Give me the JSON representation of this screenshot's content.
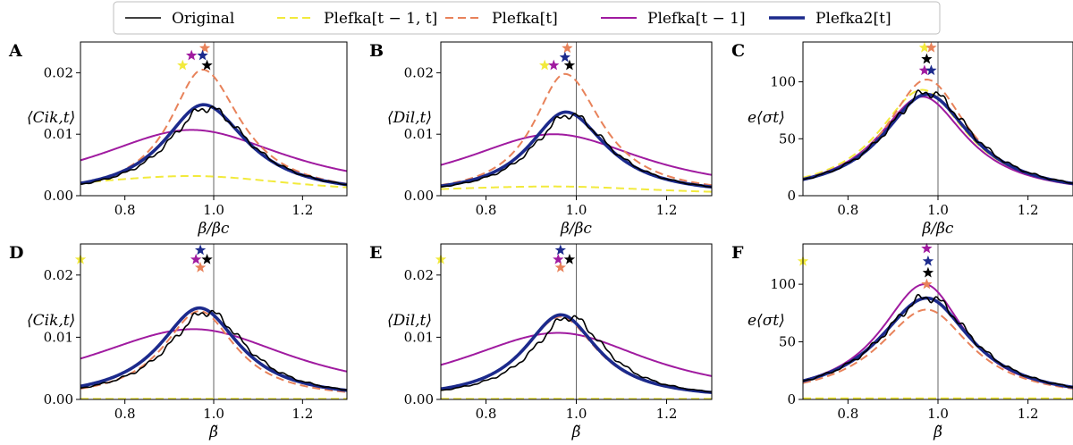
{
  "legend": [
    {
      "label": "Original",
      "color": "#000000",
      "dash": "solid",
      "width": 1.6
    },
    {
      "label": "Plefka[t − 1, t]",
      "color": "#f2ea3c",
      "dash": "dashed",
      "width": 2
    },
    {
      "label": "Plefka[t]",
      "color": "#e8825a",
      "dash": "dashed",
      "width": 2
    },
    {
      "label": "Plefka[t − 1]",
      "color": "#a01ba0",
      "dash": "solid",
      "width": 2
    },
    {
      "label": "Plefka2[t]",
      "color": "#1c2a8c",
      "dash": "solid",
      "width": 3.6
    }
  ],
  "chart_data": [
    {
      "panel": "A",
      "type": "line",
      "xlabel": "β/βc",
      "ylabel": "⟨Cik,t⟩",
      "xlim": [
        0.7,
        1.3
      ],
      "ylim": [
        0,
        0.025
      ],
      "xticks": [
        0.8,
        1.0,
        1.2
      ],
      "xtick_labels": [
        "0.8",
        "1.0",
        "1.2"
      ],
      "yticks": [
        0,
        0.01,
        0.02
      ],
      "ytick_labels": [
        "0.00",
        "0.01",
        "0.02"
      ],
      "vline": 1.0,
      "series": [
        {
          "name": "Plefka[t − 1, t]",
          "peak": 0.0032,
          "x0": 0.95,
          "left_width": 0.35,
          "right_width": 0.3,
          "base": 0
        },
        {
          "name": "Plefka[t − 1]",
          "peak": 0.0107,
          "x0": 0.95,
          "left_width": 0.27,
          "right_width": 0.27,
          "base": 0
        },
        {
          "name": "Plefka[t]",
          "peak": 0.0205,
          "x0": 0.975,
          "left_width": 0.09,
          "right_width": 0.105,
          "base": 0
        },
        {
          "name": "Plefka2[t]",
          "peak": 0.0148,
          "x0": 0.977,
          "left_width": 0.11,
          "right_width": 0.12,
          "base": 0
        },
        {
          "name": "Original",
          "peak": 0.0143,
          "x0": 0.985,
          "left_width": 0.11,
          "right_width": 0.12,
          "base": 0,
          "noise": true
        }
      ],
      "stars": [
        {
          "name": "Plefka[t]",
          "x": 0.98,
          "y": 0.024
        },
        {
          "name": "Plefka[t − 1]",
          "x": 0.95,
          "y": 0.0228
        },
        {
          "name": "Plefka2[t]",
          "x": 0.975,
          "y": 0.0228
        },
        {
          "name": "Plefka[t − 1, t]",
          "x": 0.93,
          "y": 0.0212
        },
        {
          "name": "Original",
          "x": 0.985,
          "y": 0.0212
        }
      ]
    },
    {
      "panel": "B",
      "type": "line",
      "xlabel": "β/βc",
      "ylabel": "⟨Dil,t⟩",
      "xlim": [
        0.7,
        1.3
      ],
      "ylim": [
        0,
        0.025
      ],
      "xticks": [
        0.8,
        1.0,
        1.2
      ],
      "xtick_labels": [
        "0.8",
        "1.0",
        "1.2"
      ],
      "yticks": [
        0,
        0.01,
        0.02
      ],
      "ytick_labels": [
        "0.00",
        "0.01",
        "0.02"
      ],
      "vline": 1.0,
      "series": [
        {
          "name": "Plefka[t − 1, t]",
          "peak": 0.0015,
          "x0": 0.95,
          "left_width": 0.4,
          "right_width": 0.3,
          "base": 0
        },
        {
          "name": "Plefka[t − 1]",
          "peak": 0.01,
          "x0": 0.95,
          "left_width": 0.25,
          "right_width": 0.25,
          "base": 0
        },
        {
          "name": "Plefka[t]",
          "peak": 0.0198,
          "x0": 0.975,
          "left_width": 0.085,
          "right_width": 0.1,
          "base": 0
        },
        {
          "name": "Plefka2[t]",
          "peak": 0.0136,
          "x0": 0.977,
          "left_width": 0.1,
          "right_width": 0.11,
          "base": 0
        },
        {
          "name": "Original",
          "peak": 0.0132,
          "x0": 0.985,
          "left_width": 0.1,
          "right_width": 0.11,
          "base": 0,
          "noise": true
        }
      ],
      "stars": [
        {
          "name": "Plefka[t]",
          "x": 0.98,
          "y": 0.024
        },
        {
          "name": "Plefka2[t]",
          "x": 0.975,
          "y": 0.0225
        },
        {
          "name": "Plefka[t − 1, t]",
          "x": 0.93,
          "y": 0.0212
        },
        {
          "name": "Plefka[t − 1]",
          "x": 0.95,
          "y": 0.0212
        },
        {
          "name": "Original",
          "x": 0.985,
          "y": 0.0212
        }
      ]
    },
    {
      "panel": "C",
      "type": "line",
      "xlabel": "β/βc",
      "ylabel": "e⟨σt⟩",
      "xlim": [
        0.7,
        1.3
      ],
      "ylim": [
        0,
        135
      ],
      "xticks": [
        0.8,
        1.0,
        1.2
      ],
      "xtick_labels": [
        "0.8",
        "1.0",
        "1.2"
      ],
      "yticks": [
        0,
        50,
        100
      ],
      "ytick_labels": [
        "0",
        "50",
        "100"
      ],
      "vline": 1.0,
      "series": [
        {
          "name": "Plefka[t − 1, t]",
          "peak": 93,
          "x0": 0.965,
          "left_width": 0.12,
          "right_width": 0.12,
          "base": 0
        },
        {
          "name": "Plefka[t − 1]",
          "peak": 87,
          "x0": 0.965,
          "left_width": 0.12,
          "right_width": 0.12,
          "base": 0
        },
        {
          "name": "Plefka[t]",
          "peak": 102,
          "x0": 0.975,
          "left_width": 0.11,
          "right_width": 0.11,
          "base": 0
        },
        {
          "name": "Plefka2[t]",
          "peak": 89,
          "x0": 0.975,
          "left_width": 0.12,
          "right_width": 0.12,
          "base": 0
        },
        {
          "name": "Original",
          "peak": 91,
          "x0": 0.978,
          "left_width": 0.12,
          "right_width": 0.12,
          "base": 0,
          "noise": true
        }
      ],
      "stars": [
        {
          "name": "Plefka[t − 1, t]",
          "x": 0.97,
          "y": 130
        },
        {
          "name": "Plefka[t]",
          "x": 0.985,
          "y": 130
        },
        {
          "name": "Original",
          "x": 0.975,
          "y": 120
        },
        {
          "name": "Plefka[t − 1]",
          "x": 0.97,
          "y": 110
        },
        {
          "name": "Plefka2[t]",
          "x": 0.985,
          "y": 110
        }
      ]
    },
    {
      "panel": "D",
      "type": "line",
      "xlabel": "β̃",
      "ylabel": "⟨Cik,t⟩",
      "xlim": [
        0.7,
        1.3
      ],
      "ylim": [
        0,
        0.025
      ],
      "xticks": [
        0.8,
        1.0,
        1.2
      ],
      "xtick_labels": [
        "0.8",
        "1.0",
        "1.2"
      ],
      "yticks": [
        0,
        0.01,
        0.02
      ],
      "ytick_labels": [
        "0.00",
        "0.01",
        "0.02"
      ],
      "vline": 1.0,
      "series": [
        {
          "name": "Plefka[t − 1, t]",
          "peak": 0.0001,
          "x0": 0.95,
          "left_width": 1,
          "right_width": 1,
          "base": 0
        },
        {
          "name": "Plefka[t − 1]",
          "peak": 0.0113,
          "x0": 0.955,
          "left_width": 0.3,
          "right_width": 0.28,
          "base": 0
        },
        {
          "name": "Plefka[t]",
          "peak": 0.0142,
          "x0": 0.968,
          "left_width": 0.1,
          "right_width": 0.1,
          "base": 0
        },
        {
          "name": "Plefka2[t]",
          "peak": 0.0147,
          "x0": 0.968,
          "left_width": 0.11,
          "right_width": 0.11,
          "base": 0
        },
        {
          "name": "Original",
          "peak": 0.0141,
          "x0": 0.985,
          "left_width": 0.11,
          "right_width": 0.11,
          "base": 0,
          "noise": true
        }
      ],
      "stars": [
        {
          "name": "Plefka[t − 1, t]",
          "x": 0.7,
          "y": 0.0225
        },
        {
          "name": "Plefka2[t]",
          "x": 0.97,
          "y": 0.024
        },
        {
          "name": "Plefka[t − 1]",
          "x": 0.96,
          "y": 0.0225
        },
        {
          "name": "Original",
          "x": 0.985,
          "y": 0.0225
        },
        {
          "name": "Plefka[t]",
          "x": 0.97,
          "y": 0.0212
        }
      ]
    },
    {
      "panel": "E",
      "type": "line",
      "xlabel": "β̃",
      "ylabel": "⟨Dil,t⟩",
      "xlim": [
        0.7,
        1.3
      ],
      "ylim": [
        0,
        0.025
      ],
      "xticks": [
        0.8,
        1.0,
        1.2
      ],
      "xtick_labels": [
        "0.8",
        "1.0",
        "1.2"
      ],
      "yticks": [
        0,
        0.01,
        0.02
      ],
      "ytick_labels": [
        "0.00",
        "0.01",
        "0.02"
      ],
      "vline": 1.0,
      "series": [
        {
          "name": "Plefka[t − 1, t]",
          "peak": 0.0001,
          "x0": 0.95,
          "left_width": 1,
          "right_width": 1,
          "base": 0
        },
        {
          "name": "Plefka[t − 1]",
          "peak": 0.0107,
          "x0": 0.96,
          "left_width": 0.27,
          "right_width": 0.25,
          "base": 0
        },
        {
          "name": "Plefka[t]",
          "peak": 0.0133,
          "x0": 0.965,
          "left_width": 0.1,
          "right_width": 0.1,
          "base": 0
        },
        {
          "name": "Plefka2[t]",
          "peak": 0.0136,
          "x0": 0.966,
          "left_width": 0.1,
          "right_width": 0.1,
          "base": 0
        },
        {
          "name": "Original",
          "peak": 0.0133,
          "x0": 0.985,
          "left_width": 0.1,
          "right_width": 0.1,
          "base": 0,
          "noise": true
        }
      ],
      "stars": [
        {
          "name": "Plefka[t − 1, t]",
          "x": 0.7,
          "y": 0.0225
        },
        {
          "name": "Plefka2[t]",
          "x": 0.965,
          "y": 0.024
        },
        {
          "name": "Plefka[t − 1]",
          "x": 0.96,
          "y": 0.0225
        },
        {
          "name": "Original",
          "x": 0.985,
          "y": 0.0225
        },
        {
          "name": "Plefka[t]",
          "x": 0.965,
          "y": 0.0212
        }
      ]
    },
    {
      "panel": "F",
      "type": "line",
      "xlabel": "β̃",
      "ylabel": "e⟨σt⟩",
      "xlim": [
        0.7,
        1.3
      ],
      "ylim": [
        0,
        135
      ],
      "xticks": [
        0.8,
        1.0,
        1.2
      ],
      "xtick_labels": [
        "0.8",
        "1.0",
        "1.2"
      ],
      "yticks": [
        0,
        50,
        100
      ],
      "ytick_labels": [
        "0",
        "50",
        "100"
      ],
      "vline": 1.0,
      "series": [
        {
          "name": "Plefka[t − 1, t]",
          "peak": 1,
          "x0": 0.95,
          "left_width": 1,
          "right_width": 1,
          "base": 0
        },
        {
          "name": "Plefka[t]",
          "peak": 78,
          "x0": 0.975,
          "left_width": 0.13,
          "right_width": 0.12,
          "base": 0
        },
        {
          "name": "Plefka[t − 1]",
          "peak": 100,
          "x0": 0.97,
          "left_width": 0.12,
          "right_width": 0.11,
          "base": 0
        },
        {
          "name": "Plefka2[t]",
          "peak": 88,
          "x0": 0.975,
          "left_width": 0.13,
          "right_width": 0.12,
          "base": 0
        },
        {
          "name": "Original",
          "peak": 89,
          "x0": 0.978,
          "left_width": 0.13,
          "right_width": 0.12,
          "base": 0,
          "noise": true
        }
      ],
      "stars": [
        {
          "name": "Plefka[t − 1, t]",
          "x": 0.7,
          "y": 120
        },
        {
          "name": "Plefka[t − 1]",
          "x": 0.975,
          "y": 131
        },
        {
          "name": "Plefka2[t]",
          "x": 0.978,
          "y": 120
        },
        {
          "name": "Original",
          "x": 0.978,
          "y": 110
        },
        {
          "name": "Plefka[t]",
          "x": 0.975,
          "y": 100
        }
      ]
    }
  ]
}
